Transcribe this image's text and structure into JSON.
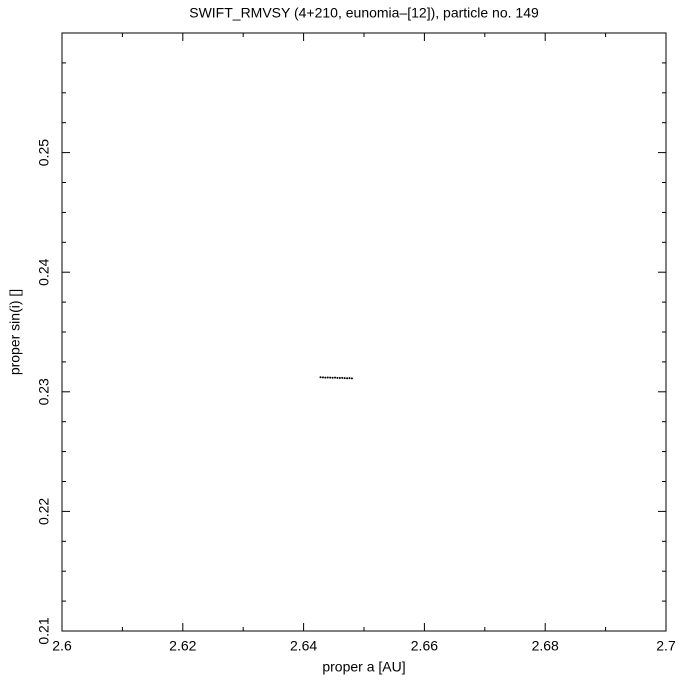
{
  "chart_data": {
    "type": "scatter",
    "title": "SWIFT_RMVSY (4+210, eunomia–[12]), particle no. 149",
    "x_label": "proper a [AU]",
    "y_label": "proper sin(i) []",
    "x": [
      2.6428,
      2.6432,
      2.6436,
      2.644,
      2.6444,
      2.6448,
      2.6452,
      2.6456,
      2.646,
      2.6464,
      2.6468,
      2.6472,
      2.6476,
      2.648
    ],
    "series": [
      {
        "name": "particle",
        "color": "#000000",
        "values": [
          0.23122,
          0.23121,
          0.23119,
          0.2312,
          0.23118,
          0.23117,
          0.23118,
          0.23116,
          0.23115,
          0.23116,
          0.23114,
          0.23113,
          0.23114,
          0.23112
        ]
      }
    ],
    "xlim": [
      2.6,
      2.7
    ],
    "ylim": [
      0.21,
      0.26
    ],
    "xticks": [
      2.6,
      2.62,
      2.64,
      2.66,
      2.68,
      2.7
    ],
    "yticks": [
      0.21,
      0.22,
      0.23,
      0.24,
      0.25
    ],
    "xticks_minor": [
      2.61,
      2.63,
      2.65,
      2.67,
      2.69
    ],
    "yticks_minor": [
      0.2125,
      0.215,
      0.2175,
      0.2225,
      0.225,
      0.2275,
      0.2325,
      0.235,
      0.2375,
      0.2425,
      0.245,
      0.2475,
      0.2525,
      0.255,
      0.2575
    ],
    "grid": false
  }
}
